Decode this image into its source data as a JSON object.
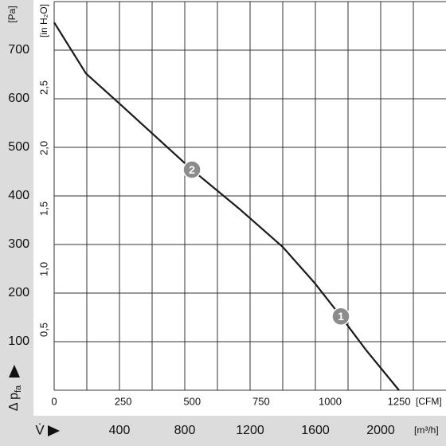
{
  "chart_data": {
    "type": "line",
    "xlabel": "[m³/h]",
    "x2label": "[CFM]",
    "ylabel": "[Pa]",
    "y2label": "[in H₂O]",
    "ysymbol": "Δ p",
    "ysymbol_sub": "fa",
    "xsymbol": "V̇",
    "xlim": [
      0,
      2400
    ],
    "xticks": [
      400,
      800,
      1200,
      1600,
      2000
    ],
    "xgrid": [
      200,
      400,
      600,
      800,
      1000,
      1200,
      1400,
      1600,
      1800,
      2000,
      2200
    ],
    "x2lim": [
      0,
      1420
    ],
    "x2ticks": [
      0,
      250,
      500,
      750,
      1000,
      1250
    ],
    "ylim": [
      0,
      800
    ],
    "yticks": [
      100,
      200,
      300,
      400,
      500,
      600,
      700
    ],
    "y2lim": [
      0,
      3.21
    ],
    "y2ticks": [
      {
        "value": 0.5,
        "label": "0,5"
      },
      {
        "value": 1.0,
        "label": "1,0"
      },
      {
        "value": 1.5,
        "label": "1,5"
      },
      {
        "value": 2.0,
        "label": "2,0"
      },
      {
        "value": 2.5,
        "label": "2,5"
      }
    ],
    "grid": true,
    "series": [
      {
        "color": "#1a1a1a",
        "x": [
          0,
          195,
          400,
          844,
          1132,
          1400,
          1595,
          1756,
          1912,
          2112
        ],
        "values": [
          757,
          652,
          590,
          454,
          374,
          295,
          221,
          152,
          82,
          0
        ]
      }
    ],
    "annotations": [
      {
        "label": "2",
        "x": 844,
        "y": 454
      },
      {
        "label": "1",
        "x": 1756,
        "y": 152
      }
    ]
  }
}
